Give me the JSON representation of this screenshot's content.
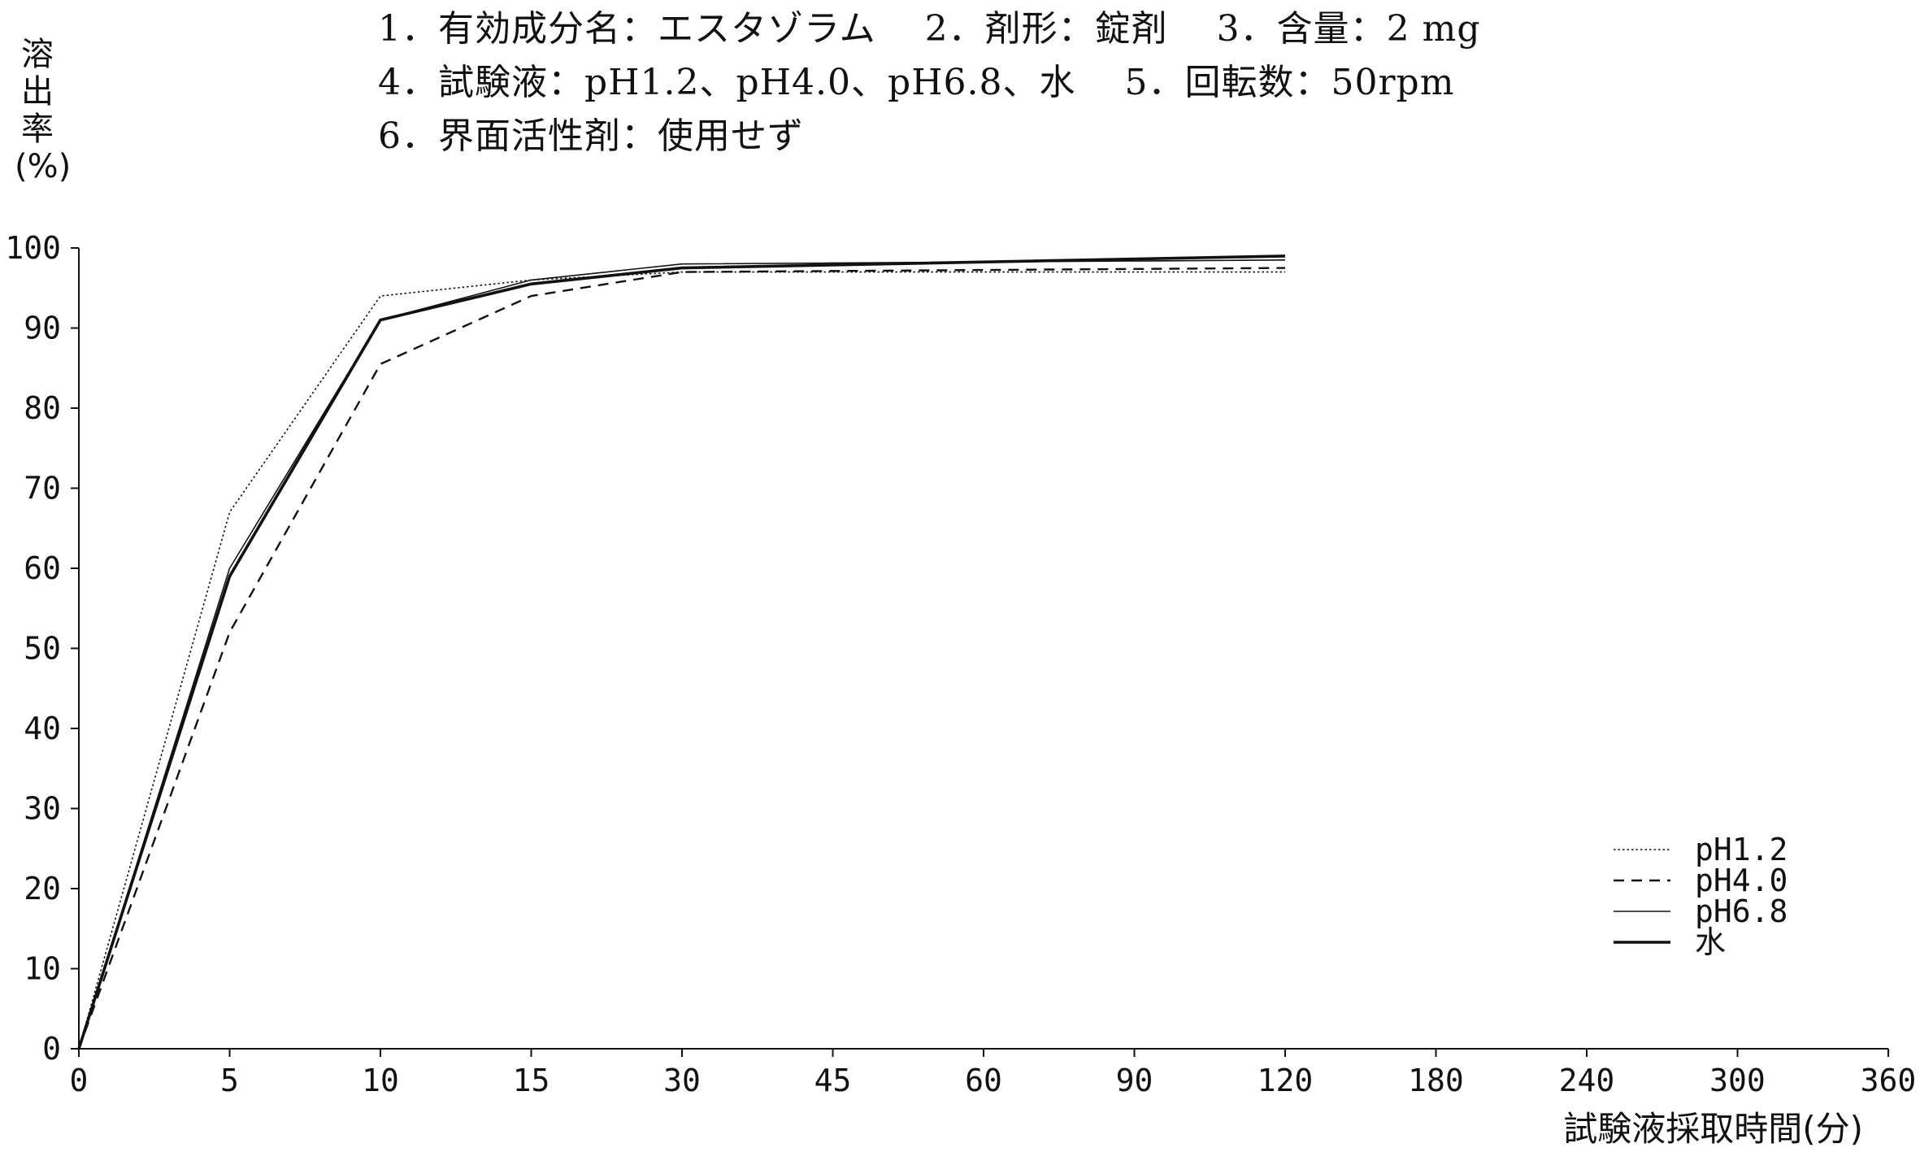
{
  "header": {
    "line1": "1．有効成分名：エスタゾラム　 2．剤形：錠剤　 3．含量：2 mg",
    "line2": "4．試験液：pH1.2、pH4.0、pH6.8、水　 5．回転数：50rpm",
    "line3": "6．界面活性剤：使用せず"
  },
  "chart_data": {
    "type": "line",
    "title": "",
    "ylabel": "溶出率(%)",
    "ylabel_chars": [
      "溶",
      "出",
      "率",
      "(%)"
    ],
    "xlabel": "試験液採取時間(分)",
    "ylim": [
      0,
      100
    ],
    "yticks": [
      0,
      10,
      20,
      30,
      40,
      50,
      60,
      70,
      80,
      90,
      100
    ],
    "x_categories": [
      "0",
      "5",
      "10",
      "15",
      "30",
      "45",
      "60",
      "90",
      "120",
      "180",
      "240",
      "300",
      "360"
    ],
    "x": [
      0,
      5,
      10,
      15,
      30,
      120
    ],
    "series": [
      {
        "name": "pH1.2",
        "style": "dotted",
        "values": [
          0,
          67,
          94,
          96,
          97,
          97
        ]
      },
      {
        "name": "pH4.0",
        "style": "dashed",
        "values": [
          0,
          52,
          85.5,
          94,
          97,
          97.5
        ]
      },
      {
        "name": "pH6.8",
        "style": "thin",
        "values": [
          0,
          60,
          91,
          96,
          98,
          98.5
        ]
      },
      {
        "name": "水",
        "style": "thick",
        "values": [
          0,
          59,
          91,
          95.5,
          97.5,
          99
        ]
      }
    ],
    "grid": false,
    "legend_position": "bottom-right",
    "line_color": "#111111"
  }
}
